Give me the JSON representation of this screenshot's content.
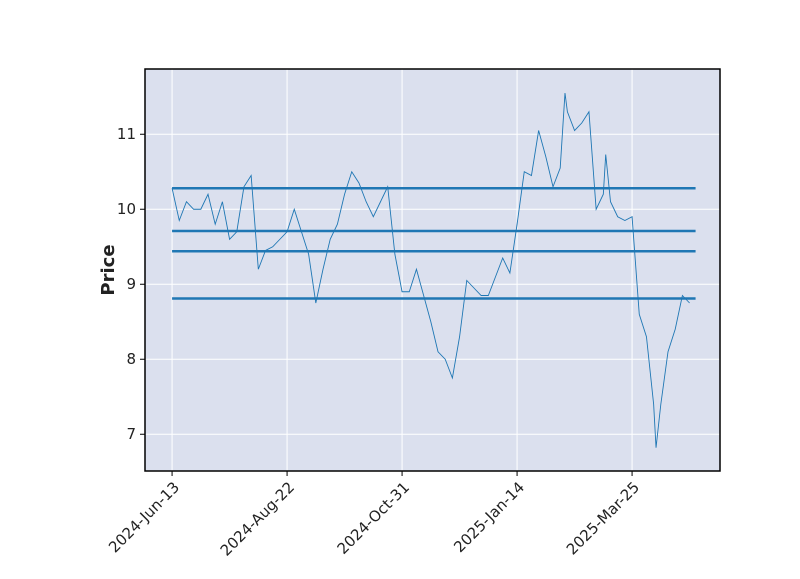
{
  "chart_data": {
    "type": "line",
    "ylabel": "Price",
    "x": [
      0,
      3,
      6,
      9,
      12,
      15,
      18,
      21,
      24,
      27,
      30,
      33,
      36,
      39,
      42,
      45,
      48,
      51,
      54,
      57,
      60,
      63,
      66,
      69,
      72,
      75,
      78,
      81,
      84,
      87,
      90,
      93,
      96,
      99,
      102,
      105,
      108,
      111,
      114,
      117,
      120,
      123,
      126,
      129,
      132,
      135,
      138,
      141,
      144,
      147,
      150,
      153,
      156,
      159,
      162,
      164,
      165,
      168,
      171,
      174,
      177,
      180,
      181,
      183,
      186,
      189,
      192,
      195,
      198,
      201,
      202,
      204,
      207,
      210,
      213,
      216
    ],
    "series": [
      {
        "color": "#1f77b4",
        "values": [
          10.28,
          9.85,
          10.1,
          10.0,
          10.0,
          10.2,
          9.8,
          10.1,
          9.6,
          9.7,
          10.3,
          10.45,
          9.2,
          9.45,
          9.5,
          9.6,
          9.7,
          10.0,
          9.7,
          9.4,
          8.75,
          9.2,
          9.6,
          9.8,
          10.2,
          10.5,
          10.35,
          10.1,
          9.9,
          10.1,
          10.3,
          9.4,
          8.9,
          8.9,
          9.2,
          8.85,
          8.5,
          8.1,
          8.0,
          7.75,
          8.3,
          9.05,
          8.95,
          8.85,
          8.85,
          9.1,
          9.35,
          9.15,
          9.8,
          10.5,
          10.45,
          11.05,
          10.7,
          10.3,
          10.55,
          11.55,
          11.3,
          11.05,
          11.15,
          11.3,
          10.0,
          10.2,
          10.73,
          10.1,
          9.9,
          9.85,
          9.9,
          8.6,
          8.3,
          7.4,
          6.82,
          7.4,
          8.1,
          8.4,
          8.85,
          8.75
        ]
      }
    ],
    "hlines": {
      "color": "#1f77b4",
      "values": [
        10.28,
        9.71,
        9.44,
        8.81
      ]
    },
    "xlim": [
      -11.3,
      228.7
    ],
    "xticks": [
      {
        "value": 0,
        "label": "2024-Jun-13"
      },
      {
        "value": 48,
        "label": "2024-Aug-22"
      },
      {
        "value": 96,
        "label": "2024-Oct-31"
      },
      {
        "value": 144,
        "label": "2025-Jan-14"
      },
      {
        "value": 192,
        "label": "2025-Mar-25"
      }
    ],
    "ylim": [
      6.51,
      11.87
    ],
    "yticks": [
      7,
      8,
      9,
      10,
      11
    ],
    "grid": true
  }
}
